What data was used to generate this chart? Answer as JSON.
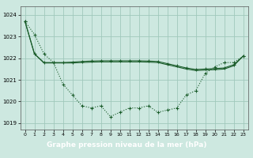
{
  "title": "Graphe pression niveau de la mer (hPa)",
  "bg_color": "#cde8e0",
  "grid_color": "#a0c8bc",
  "line_color": "#1a5c2a",
  "label_bg": "#2d6e3e",
  "label_fg": "#ffffff",
  "x_values": [
    0,
    1,
    2,
    3,
    4,
    5,
    6,
    7,
    8,
    9,
    10,
    11,
    12,
    13,
    14,
    15,
    16,
    17,
    18,
    19,
    20,
    21,
    22,
    23
  ],
  "series1": [
    1023.7,
    1023.1,
    1022.2,
    1021.8,
    1020.8,
    1020.3,
    1019.8,
    1019.7,
    1019.8,
    1019.3,
    1019.5,
    1019.7,
    1019.7,
    1019.8,
    1019.5,
    1019.6,
    1019.7,
    1020.3,
    1020.5,
    1021.3,
    1021.6,
    1021.8,
    1021.8,
    1022.1
  ],
  "series2": [
    1023.7,
    1022.2,
    1021.8,
    1021.8,
    1021.8,
    1021.82,
    1021.85,
    1021.87,
    1021.88,
    1021.88,
    1021.88,
    1021.88,
    1021.88,
    1021.87,
    1021.85,
    1021.75,
    1021.65,
    1021.55,
    1021.48,
    1021.5,
    1021.52,
    1021.55,
    1021.7,
    1022.1
  ],
  "series3": [
    1023.7,
    1022.2,
    1021.78,
    1021.78,
    1021.78,
    1021.78,
    1021.8,
    1021.82,
    1021.83,
    1021.83,
    1021.83,
    1021.83,
    1021.83,
    1021.82,
    1021.8,
    1021.7,
    1021.6,
    1021.5,
    1021.43,
    1021.45,
    1021.47,
    1021.5,
    1021.65,
    1022.1
  ],
  "ylim": [
    1018.7,
    1024.4
  ],
  "yticks": [
    1019,
    1020,
    1021,
    1022,
    1023,
    1024
  ],
  "xlim": [
    -0.5,
    23.5
  ],
  "xticks": [
    0,
    1,
    2,
    3,
    4,
    5,
    6,
    7,
    8,
    9,
    10,
    11,
    12,
    13,
    14,
    15,
    16,
    17,
    18,
    19,
    20,
    21,
    22,
    23
  ]
}
